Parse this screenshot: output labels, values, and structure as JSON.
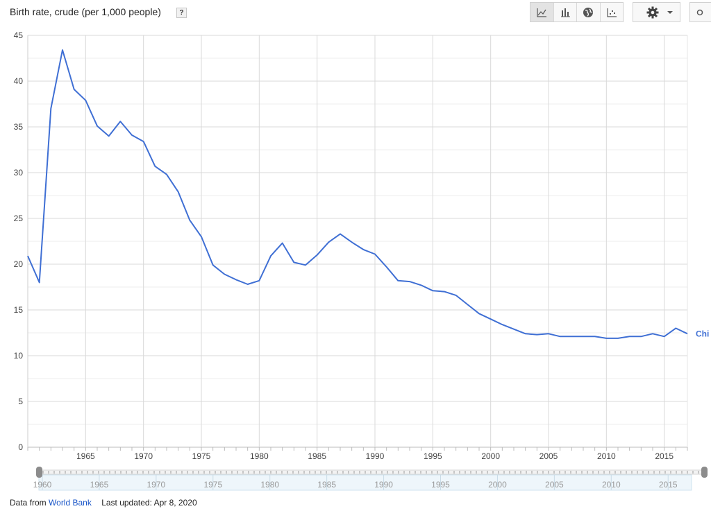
{
  "header": {
    "title": "Birth rate, crude (per 1,000 people)",
    "help_label": "?",
    "view_buttons": [
      {
        "icon": "line-chart-icon",
        "active": true
      },
      {
        "icon": "bar-chart-icon",
        "active": false
      },
      {
        "icon": "globe-map-icon",
        "active": false
      },
      {
        "icon": "scatter-chart-icon",
        "active": false
      }
    ],
    "settings_icon": "gear-icon",
    "share_icon": "share-icon"
  },
  "footer": {
    "source_prefix": "Data from",
    "source_link": "World Bank",
    "updated": "Last updated: Apr 8, 2020"
  },
  "colors": {
    "series": "#3f6fd4",
    "grid": "#d9d9d9",
    "link": "#1a56c8"
  },
  "chart_data": {
    "type": "line",
    "title": "Birth rate, crude (per 1,000 people)",
    "xlabel": "",
    "ylabel": "",
    "xlim": [
      1960,
      2017
    ],
    "ylim": [
      0,
      45
    ],
    "y_ticks": [
      0,
      5,
      10,
      15,
      20,
      25,
      30,
      35,
      40,
      45
    ],
    "x_ticks": [
      1965,
      1970,
      1975,
      1980,
      1985,
      1990,
      1995,
      2000,
      2005,
      2010,
      2015
    ],
    "grid": true,
    "series": [
      {
        "name": "Chi",
        "color": "#3f6fd4",
        "x": [
          1960,
          1961,
          1962,
          1963,
          1964,
          1965,
          1966,
          1967,
          1968,
          1969,
          1970,
          1971,
          1972,
          1973,
          1974,
          1975,
          1976,
          1977,
          1978,
          1979,
          1980,
          1981,
          1982,
          1983,
          1984,
          1985,
          1986,
          1987,
          1988,
          1989,
          1990,
          1991,
          1992,
          1993,
          1994,
          1995,
          1996,
          1997,
          1998,
          1999,
          2000,
          2001,
          2002,
          2003,
          2004,
          2005,
          2006,
          2007,
          2008,
          2009,
          2010,
          2011,
          2012,
          2013,
          2014,
          2015,
          2016,
          2017
        ],
        "values": [
          20.9,
          18.0,
          37.0,
          43.4,
          39.1,
          37.9,
          35.1,
          34.0,
          35.6,
          34.1,
          33.4,
          30.7,
          29.8,
          27.9,
          24.8,
          23.0,
          19.9,
          18.9,
          18.3,
          17.8,
          18.2,
          20.9,
          22.3,
          20.2,
          19.9,
          21.0,
          22.4,
          23.3,
          22.4,
          21.6,
          21.1,
          19.7,
          18.2,
          18.1,
          17.7,
          17.1,
          17.0,
          16.6,
          15.6,
          14.6,
          14.0,
          13.4,
          12.9,
          12.4,
          12.3,
          12.4,
          12.1,
          12.1,
          12.1,
          12.1,
          11.9,
          11.9,
          12.1,
          12.1,
          12.4,
          12.1,
          13.0,
          12.4
        ]
      }
    ]
  },
  "range_slider": {
    "labels": [
      1960,
      1965,
      1970,
      1975,
      1980,
      1985,
      1990,
      1995,
      2000,
      2005,
      2010,
      2015
    ]
  }
}
